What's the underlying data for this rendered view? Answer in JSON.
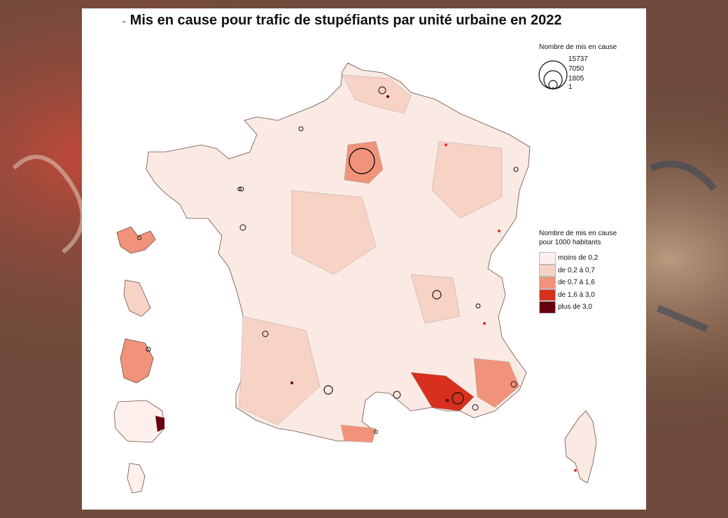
{
  "title": "Mis en cause pour trafic de stupéfiants par unité urbaine en 2022",
  "legend_size": {
    "title": "Nombre de mis en cause",
    "values": [
      "15737",
      "7050",
      "1805",
      "1"
    ]
  },
  "legend_color": {
    "title_line1": "Nombre de mis en cause",
    "title_line2": "pour 1000 habitants",
    "classes": [
      {
        "label": "moins de 0,2",
        "color": "#fdf0ec"
      },
      {
        "label": "de 0,2 à 0,7",
        "color": "#f7d3c5"
      },
      {
        "label": "de 0,7 à 1,6",
        "color": "#f0937a"
      },
      {
        "label": "de 1,6 à 3,0",
        "color": "#d7301f"
      },
      {
        "label": "plus de 3,0",
        "color": "#67000d"
      }
    ]
  },
  "colors": {
    "outline": "#222222",
    "background_photo": "#6b4a3c"
  }
}
